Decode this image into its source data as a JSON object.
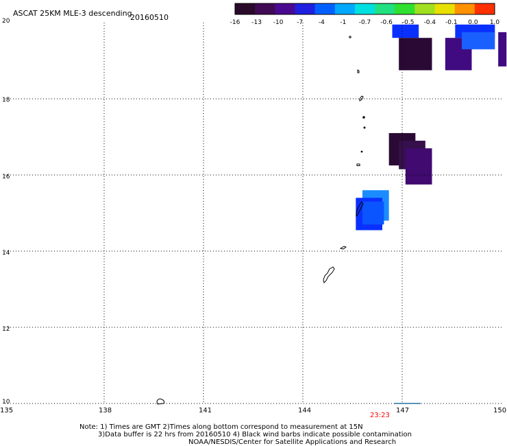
{
  "header": {
    "title": "ASCAT 25KM MLE-3 descending",
    "date": "20160510"
  },
  "colorbar": {
    "labels": [
      "-16",
      "-13",
      "-10",
      "-7",
      "-4",
      "-1",
      "-0.7",
      "-0.6",
      "-0.5",
      "-0.4",
      "-0.1",
      "0.0",
      "1.0"
    ],
    "colors": [
      "#2a0a2a",
      "#400a55",
      "#4a0a90",
      "#2020e0",
      "#0060ff",
      "#00a8ff",
      "#00e0e0",
      "#20e080",
      "#30e030",
      "#a0e020",
      "#e8e000",
      "#ff9000",
      "#ff3000"
    ]
  },
  "map": {
    "lat_labels": [
      "20",
      "18",
      "16",
      "14",
      "12",
      "10"
    ],
    "lon_labels": [
      "135",
      "138",
      "141",
      "144",
      "147",
      "150"
    ],
    "time_label": "23:23",
    "time_color": "#ff0000",
    "cells": [
      {
        "lon": 146.7,
        "lat": 19.95,
        "w": 0.8,
        "h": 0.35,
        "color": "#0a30ff"
      },
      {
        "lon": 146.9,
        "lat": 19.6,
        "w": 1.0,
        "h": 0.85,
        "color": "#2a0a35"
      },
      {
        "lon": 148.3,
        "lat": 19.6,
        "w": 0.8,
        "h": 0.85,
        "color": "#400a80"
      },
      {
        "lon": 148.6,
        "lat": 19.95,
        "w": 1.2,
        "h": 0.35,
        "color": "#0a30ff"
      },
      {
        "lon": 148.8,
        "lat": 19.75,
        "w": 1.0,
        "h": 0.45,
        "color": "#1a60ff"
      },
      {
        "lon": 149.9,
        "lat": 19.75,
        "w": 0.25,
        "h": 0.9,
        "color": "#400a80"
      },
      {
        "lon": 146.6,
        "lat": 17.1,
        "w": 0.8,
        "h": 0.85,
        "color": "#2a0a35"
      },
      {
        "lon": 146.9,
        "lat": 16.9,
        "w": 0.8,
        "h": 0.75,
        "color": "#35104a"
      },
      {
        "lon": 147.1,
        "lat": 16.7,
        "w": 0.8,
        "h": 0.95,
        "color": "#400a70"
      },
      {
        "lon": 145.8,
        "lat": 15.6,
        "w": 0.8,
        "h": 0.8,
        "color": "#1a8cff"
      },
      {
        "lon": 145.6,
        "lat": 15.4,
        "w": 0.8,
        "h": 0.85,
        "color": "#0a30ff"
      },
      {
        "lon": 145.8,
        "lat": 15.3,
        "w": 0.65,
        "h": 0.6,
        "color": "#0a55ff"
      }
    ]
  },
  "notes": {
    "line1": "Note: 1) Times are GMT 2)Times along bottom correspond to measurement at 15N",
    "line2": "3)Data buffer is 22 hrs from 20160510 4) Black wind barbs indicate possible contamination",
    "line3": "NOAA/NESDIS/Center for Satellite Applications and Research"
  }
}
